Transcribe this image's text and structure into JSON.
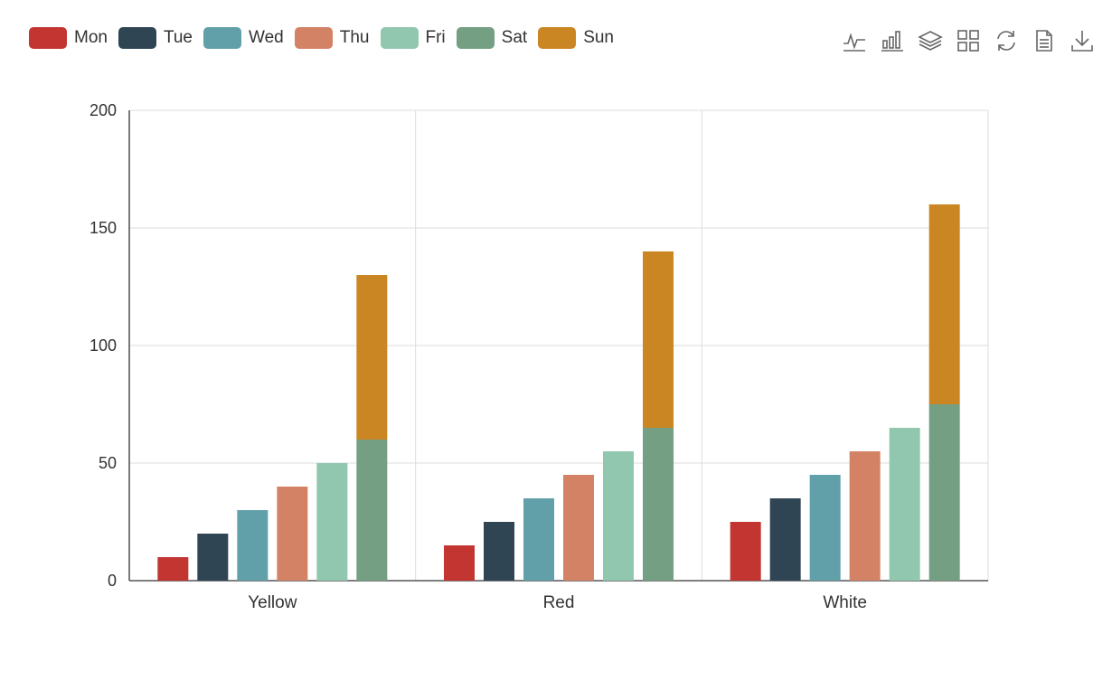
{
  "toolbox": {
    "tools": [
      {
        "name": "line-chart-icon"
      },
      {
        "name": "bar-chart-icon"
      },
      {
        "name": "stack-icon"
      },
      {
        "name": "tile-icon"
      },
      {
        "name": "restore-icon"
      },
      {
        "name": "data-view-icon"
      },
      {
        "name": "save-image-icon"
      }
    ]
  },
  "chart_data": {
    "type": "bar",
    "categories": [
      "Yellow",
      "Red",
      "White"
    ],
    "series": [
      {
        "name": "Mon",
        "values": [
          10,
          15,
          25
        ],
        "color": "#c23531"
      },
      {
        "name": "Tue",
        "values": [
          20,
          25,
          35
        ],
        "color": "#2f4554"
      },
      {
        "name": "Wed",
        "values": [
          30,
          35,
          45
        ],
        "color": "#61a0a8"
      },
      {
        "name": "Thu",
        "values": [
          40,
          45,
          55
        ],
        "color": "#d48265"
      },
      {
        "name": "Fri",
        "values": [
          50,
          55,
          65
        ],
        "color": "#91c7ae"
      },
      {
        "name": "Sat",
        "values": [
          60,
          65,
          75
        ],
        "color": "#749f83",
        "stack": "weekend"
      },
      {
        "name": "Sun",
        "values": [
          70,
          75,
          85
        ],
        "color": "#ca8622",
        "stack": "weekend"
      }
    ],
    "ylim": [
      0,
      200
    ],
    "yticks": [
      0,
      50,
      100,
      150,
      200
    ],
    "grid": true,
    "legend_position": "top-left"
  }
}
